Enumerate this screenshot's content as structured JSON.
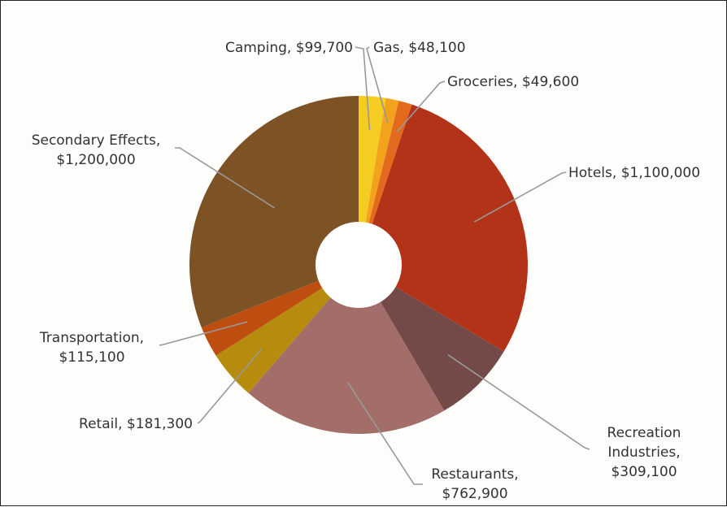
{
  "chart_data": {
    "type": "pie",
    "variant": "donut",
    "title": "",
    "slices": [
      {
        "name": "Camping",
        "value": 99700,
        "color": "#F5CC21",
        "label_lines": [
          "Camping, $99,700"
        ]
      },
      {
        "name": "Gas",
        "value": 48100,
        "color": "#F3A21C",
        "label_lines": [
          "Gas, $48,100"
        ]
      },
      {
        "name": "Groceries",
        "value": 49600,
        "color": "#E36A1C",
        "label_lines": [
          "Groceries, $49,600"
        ]
      },
      {
        "name": "Hotels",
        "value": 1100000,
        "color": "#B33318",
        "label_lines": [
          "Hotels, $1,100,000"
        ]
      },
      {
        "name": "Recreation Industries",
        "value": 309100,
        "color": "#744A48",
        "label_lines": [
          "Recreation",
          "Industries,",
          "$309,100"
        ]
      },
      {
        "name": "Restaurants",
        "value": 762900,
        "color": "#A36E6A",
        "label_lines": [
          "Restaurants,",
          "$762,900"
        ]
      },
      {
        "name": "Retail",
        "value": 181300,
        "color": "#B78B0D",
        "label_lines": [
          "Retail, $181,300"
        ]
      },
      {
        "name": "Transportation",
        "value": 115100,
        "color": "#BD4E10",
        "label_lines": [
          "Transportation,",
          "$115,100"
        ]
      },
      {
        "name": "Secondary Effects",
        "value": 1200000,
        "color": "#7D5225",
        "label_lines": [
          "Secondary Effects,",
          "$1,200,000"
        ]
      }
    ],
    "start_angle_deg": 0,
    "direction": "clockwise",
    "hole": true,
    "legend": "none"
  }
}
